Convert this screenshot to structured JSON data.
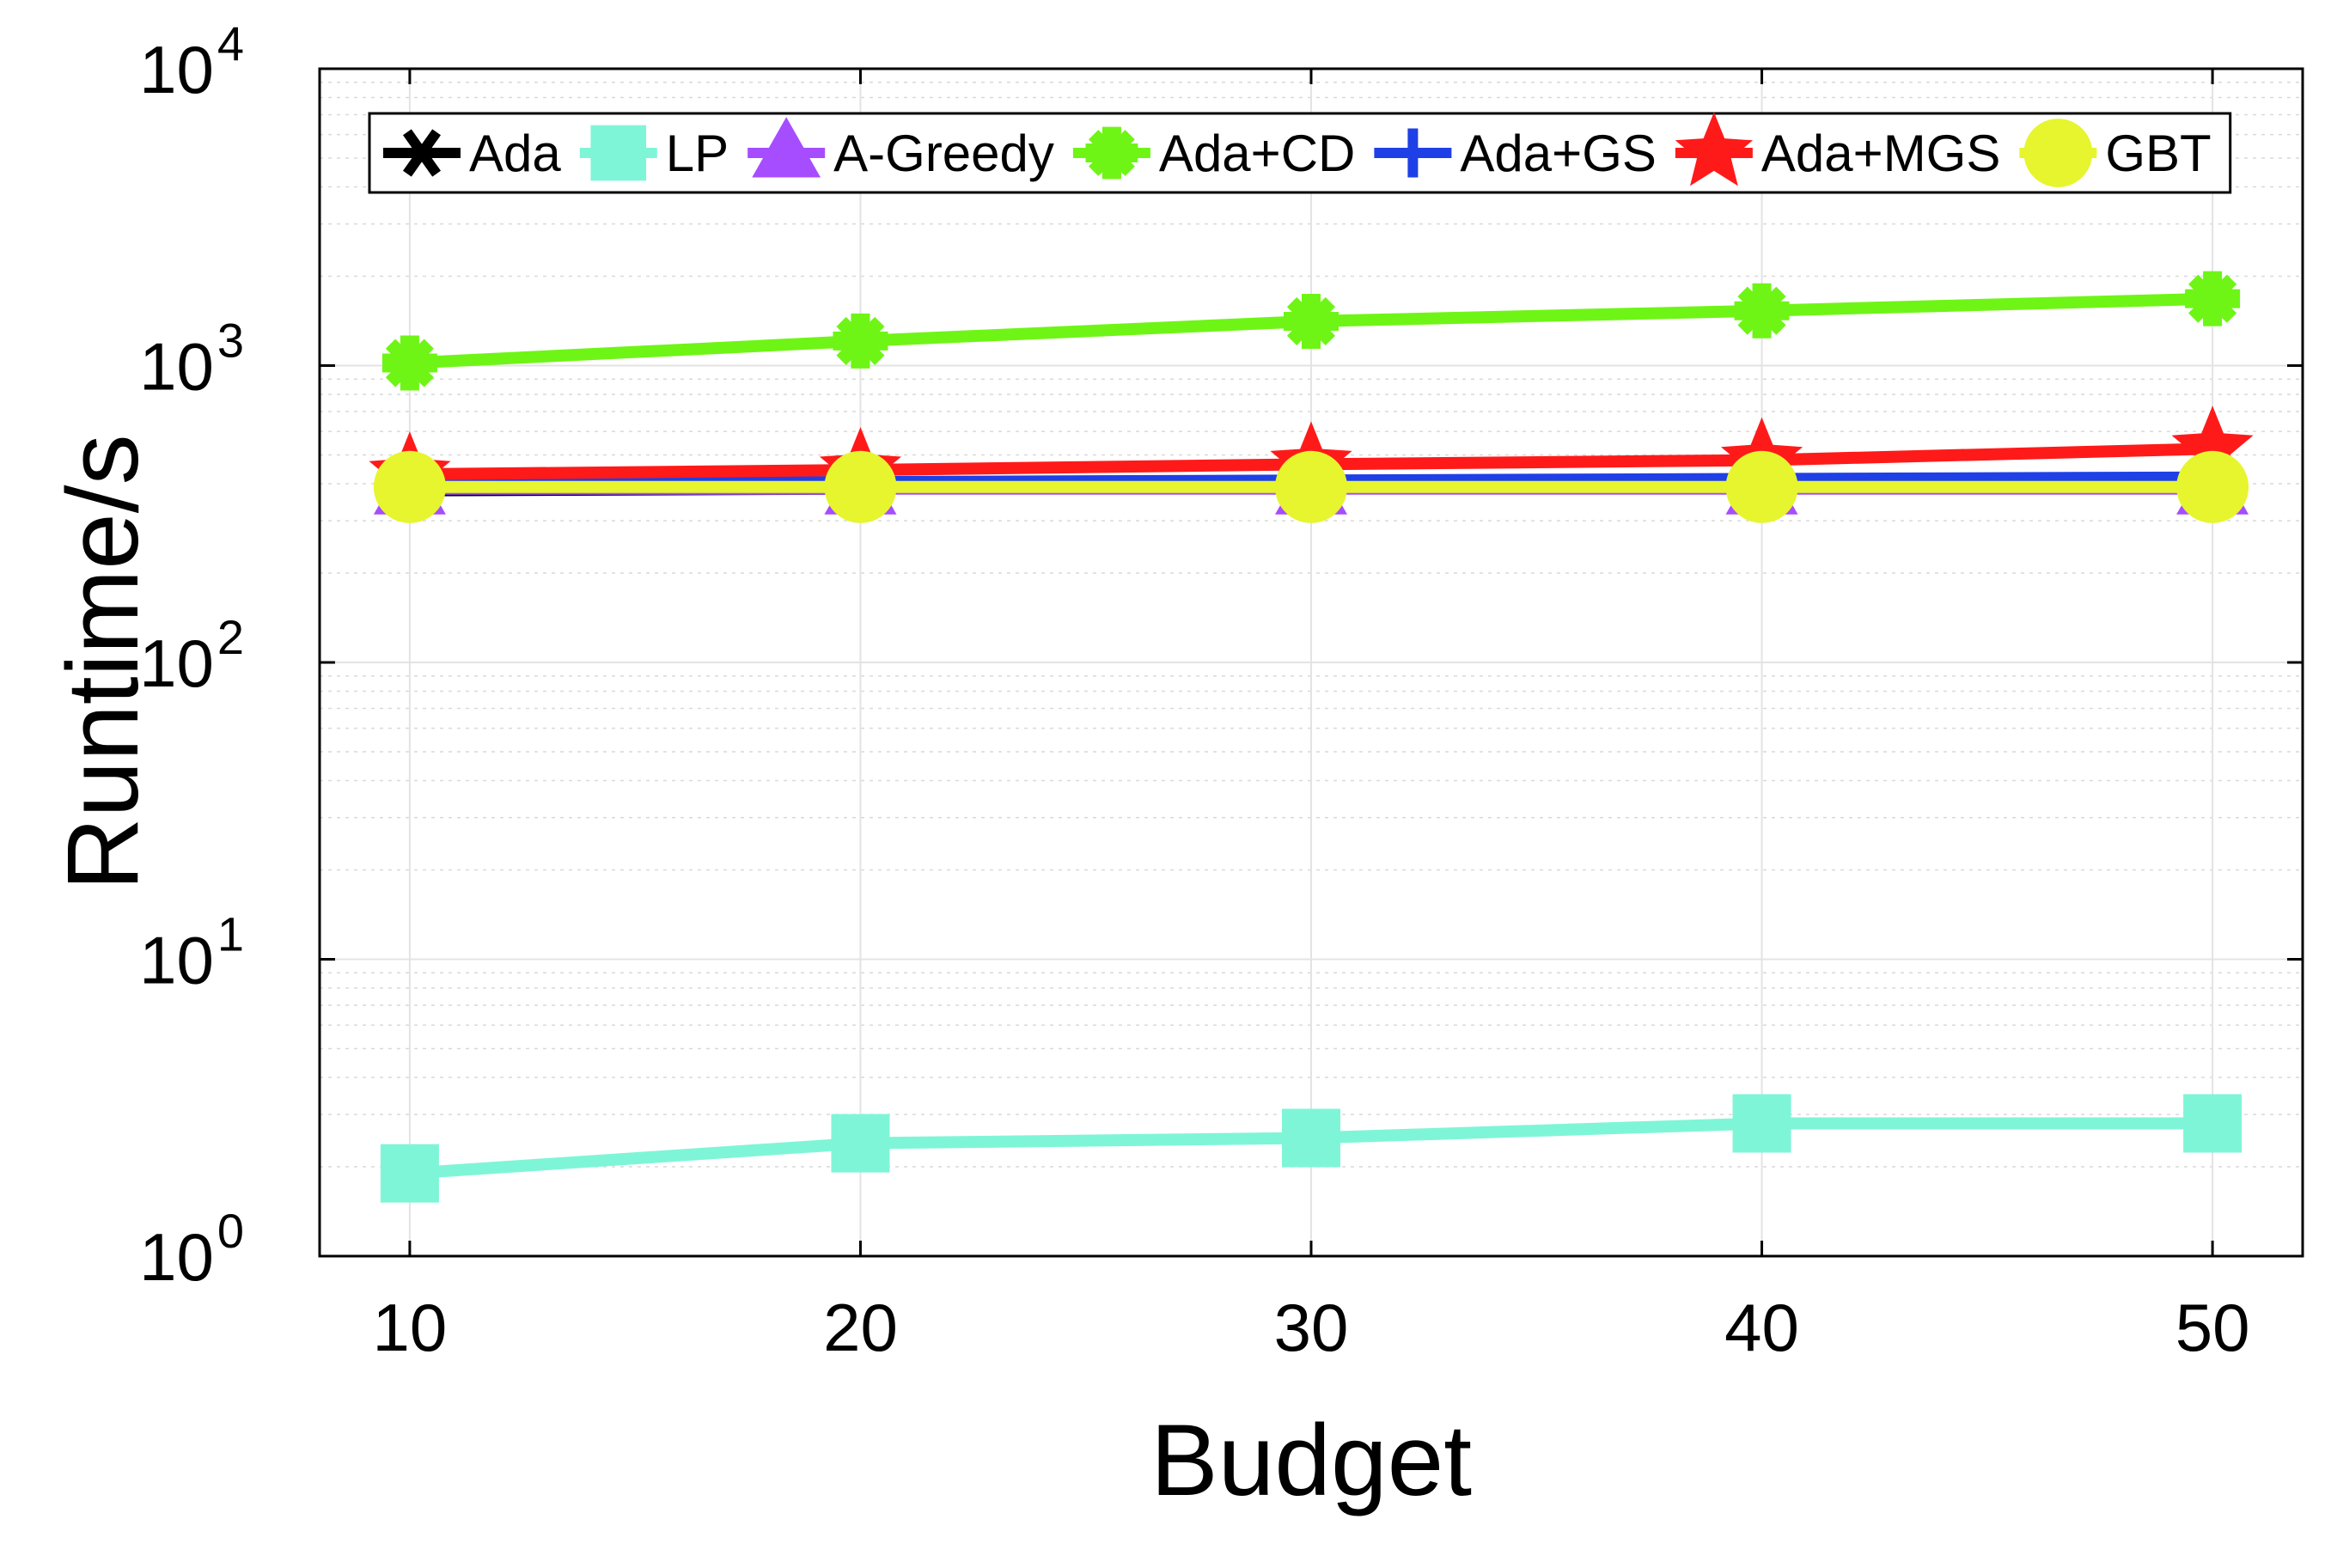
{
  "chart_data": {
    "type": "line",
    "xlabel": "Budget",
    "ylabel": "Runtime/s",
    "x": [
      10,
      20,
      30,
      40,
      50
    ],
    "xlim": [
      8,
      52
    ],
    "ylim": [
      1,
      10000
    ],
    "yscale": "log",
    "x_ticks": [
      "10",
      "20",
      "30",
      "40",
      "50"
    ],
    "y_ticks": [
      {
        "base": "10",
        "exp": "0",
        "value": 1
      },
      {
        "base": "10",
        "exp": "1",
        "value": 10
      },
      {
        "base": "10",
        "exp": "2",
        "value": 100
      },
      {
        "base": "10",
        "exp": "3",
        "value": 1000
      },
      {
        "base": "10",
        "exp": "4",
        "value": 10000
      }
    ],
    "grid": true,
    "legend_position": "top",
    "series": [
      {
        "name": "Ada",
        "color": "#000000",
        "marker": "asterisk",
        "values": [
          380,
          385,
          390,
          395,
          400
        ]
      },
      {
        "name": "LP",
        "color": "#7ff5d8",
        "marker": "square",
        "values": [
          1.9,
          2.4,
          2.5,
          2.8,
          2.8
        ]
      },
      {
        "name": "A-Greedy",
        "color": "#a64dff",
        "marker": "triangle",
        "values": [
          385,
          385,
          385,
          385,
          385
        ]
      },
      {
        "name": "Ada+CD",
        "color": "#6ef516",
        "marker": "plus-bold",
        "values": [
          1020,
          1210,
          1410,
          1530,
          1680
        ]
      },
      {
        "name": "Ada+GS",
        "color": "#1f40e6",
        "marker": "plus",
        "values": [
          400,
          405,
          410,
          415,
          420
        ]
      },
      {
        "name": "Ada+MGS",
        "color": "#ff1a1a",
        "marker": "star",
        "values": [
          430,
          445,
          465,
          480,
          525
        ]
      },
      {
        "name": "GBT",
        "color": "#e6f52e",
        "marker": "circle",
        "values": [
          390,
          390,
          390,
          390,
          390
        ]
      }
    ]
  }
}
